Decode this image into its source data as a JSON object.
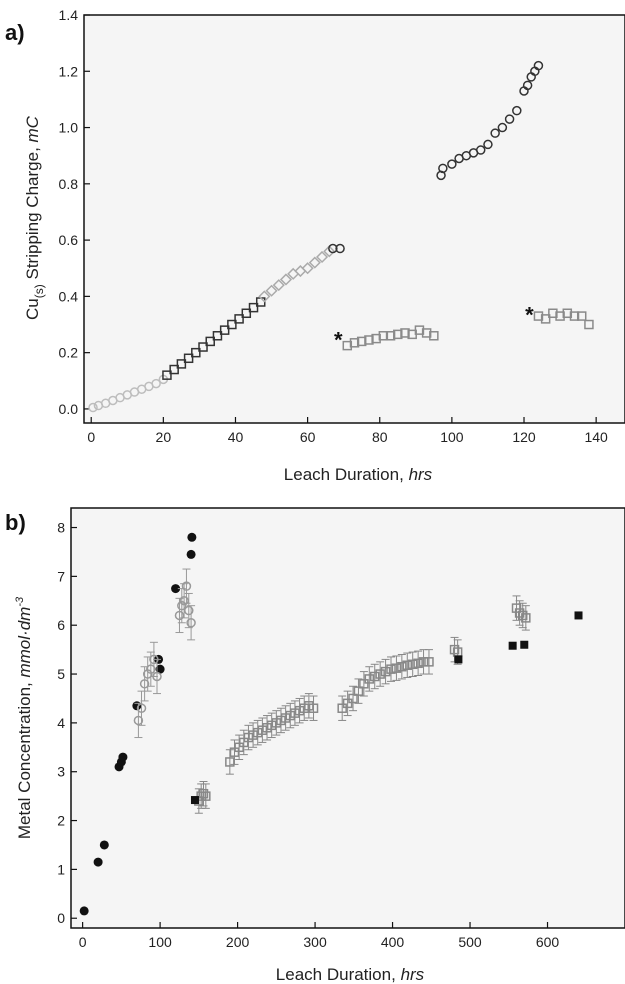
{
  "chart_data": [
    {
      "type": "scatter",
      "panel_label": "a)",
      "xlabel": "Leach Duration,",
      "xlabel_unit": "hrs",
      "ylabel_base": "Cu",
      "ylabel_sub": "(s)",
      "ylabel_rest": " Stripping Charge,",
      "ylabel_unit": "mC",
      "xlim": [
        -2,
        148
      ],
      "ylim": [
        -0.05,
        1.4
      ],
      "xticks": [
        0,
        20,
        40,
        60,
        80,
        100,
        120,
        140
      ],
      "yticks": [
        0.0,
        0.2,
        0.4,
        0.6,
        0.8,
        1.0,
        1.2,
        1.4
      ],
      "ytick_labels": [
        "0.0",
        "0.2",
        "0.4",
        "0.6",
        "0.8",
        "1.0",
        "1.2",
        "1.4"
      ],
      "annotations": [
        {
          "text": "*",
          "x": 68.5,
          "y": 0.25
        },
        {
          "text": "*",
          "x": 121.5,
          "y": 0.34
        }
      ],
      "series": [
        {
          "marker": "circle-open",
          "color": "#bdbdbd",
          "x": [
            0.5,
            2,
            4,
            6,
            8,
            10,
            12,
            14,
            16,
            18,
            20
          ],
          "y": [
            0.005,
            0.012,
            0.02,
            0.03,
            0.04,
            0.05,
            0.06,
            0.07,
            0.08,
            0.09,
            0.105
          ]
        },
        {
          "marker": "square-open",
          "color": "#333333",
          "x": [
            21,
            23,
            25,
            27,
            29,
            31,
            33,
            35,
            37,
            39,
            41,
            43,
            45,
            47
          ],
          "y": [
            0.12,
            0.14,
            0.16,
            0.18,
            0.2,
            0.22,
            0.24,
            0.26,
            0.28,
            0.3,
            0.32,
            0.34,
            0.36,
            0.38
          ]
        },
        {
          "marker": "diamond-open",
          "color": "#aaaaaa",
          "x": [
            48,
            50,
            52,
            54,
            56,
            58,
            60,
            62,
            64,
            66
          ],
          "y": [
            0.4,
            0.42,
            0.44,
            0.46,
            0.48,
            0.49,
            0.5,
            0.52,
            0.54,
            0.56
          ]
        },
        {
          "marker": "circle-open",
          "color": "#333333",
          "x": [
            67,
            69,
            97,
            97.5,
            100,
            102,
            104,
            106,
            108,
            110,
            112,
            114,
            116,
            118,
            120,
            121,
            122,
            123,
            124
          ],
          "y": [
            0.57,
            0.57,
            0.83,
            0.855,
            0.87,
            0.89,
            0.9,
            0.91,
            0.92,
            0.94,
            0.98,
            1.0,
            1.03,
            1.06,
            1.13,
            1.15,
            1.18,
            1.2,
            1.22
          ]
        },
        {
          "marker": "square-open",
          "color": "#8a8a8a",
          "x": [
            71,
            73,
            75,
            77,
            79,
            81,
            83,
            85,
            87,
            89,
            91,
            93,
            95,
            124,
            126,
            128,
            130,
            132,
            134,
            136,
            138
          ],
          "y": [
            0.225,
            0.235,
            0.24,
            0.245,
            0.25,
            0.26,
            0.26,
            0.265,
            0.27,
            0.265,
            0.28,
            0.27,
            0.26,
            0.33,
            0.32,
            0.34,
            0.33,
            0.34,
            0.33,
            0.33,
            0.3
          ]
        }
      ]
    },
    {
      "type": "scatter",
      "panel_label": "b)",
      "xlabel": "Leach Duration,",
      "xlabel_unit": "hrs",
      "ylabel": "Metal Concentration,",
      "ylabel_unit": "mmol·dm",
      "ylabel_sup": "-3",
      "xlim": [
        -15,
        700
      ],
      "ylim": [
        -0.2,
        8.4
      ],
      "xticks": [
        0,
        100,
        200,
        300,
        400,
        500,
        600
      ],
      "yticks": [
        0,
        1,
        2,
        3,
        4,
        5,
        6,
        7,
        8
      ],
      "series": [
        {
          "marker": "circle-filled",
          "color": "#111111",
          "x": [
            2,
            20,
            28,
            47,
            50,
            52,
            70,
            98,
            100,
            120,
            140,
            141
          ],
          "y": [
            0.15,
            1.15,
            1.5,
            3.1,
            3.2,
            3.3,
            4.35,
            5.3,
            5.1,
            6.75,
            7.45,
            7.8
          ]
        },
        {
          "marker": "circle-open",
          "color": "#999999",
          "error": 0.35,
          "x": [
            72,
            76,
            80,
            84,
            88,
            92,
            96,
            125,
            128,
            131,
            134,
            137,
            140
          ],
          "y": [
            4.05,
            4.3,
            4.8,
            5.0,
            5.1,
            5.3,
            4.95,
            6.2,
            6.4,
            6.5,
            6.8,
            6.3,
            6.05
          ]
        },
        {
          "marker": "square-open",
          "color": "#888888",
          "error": 0.25,
          "x": [
            150,
            153,
            156,
            159,
            190,
            196,
            202,
            208,
            214,
            220,
            226,
            232,
            238,
            244,
            250,
            256,
            262,
            268,
            274,
            280,
            286,
            292,
            298,
            335,
            342,
            349,
            356,
            363,
            370,
            377,
            384,
            391,
            398,
            405,
            412,
            419,
            426,
            433,
            440,
            447,
            480,
            484,
            560,
            564,
            568,
            572
          ],
          "y": [
            2.4,
            2.5,
            2.55,
            2.5,
            3.2,
            3.4,
            3.5,
            3.6,
            3.7,
            3.75,
            3.8,
            3.85,
            3.9,
            3.95,
            4.0,
            4.05,
            4.1,
            4.15,
            4.2,
            4.25,
            4.3,
            4.35,
            4.3,
            4.3,
            4.4,
            4.5,
            4.65,
            4.8,
            4.9,
            4.95,
            5.0,
            5.05,
            5.1,
            5.12,
            5.15,
            5.18,
            5.2,
            5.22,
            5.25,
            5.25,
            5.5,
            5.45,
            6.35,
            6.25,
            6.2,
            6.15
          ]
        },
        {
          "marker": "square-filled",
          "color": "#111111",
          "x": [
            145,
            485,
            555,
            570,
            640
          ],
          "y": [
            2.42,
            5.3,
            5.58,
            5.6,
            6.2
          ]
        }
      ]
    }
  ]
}
